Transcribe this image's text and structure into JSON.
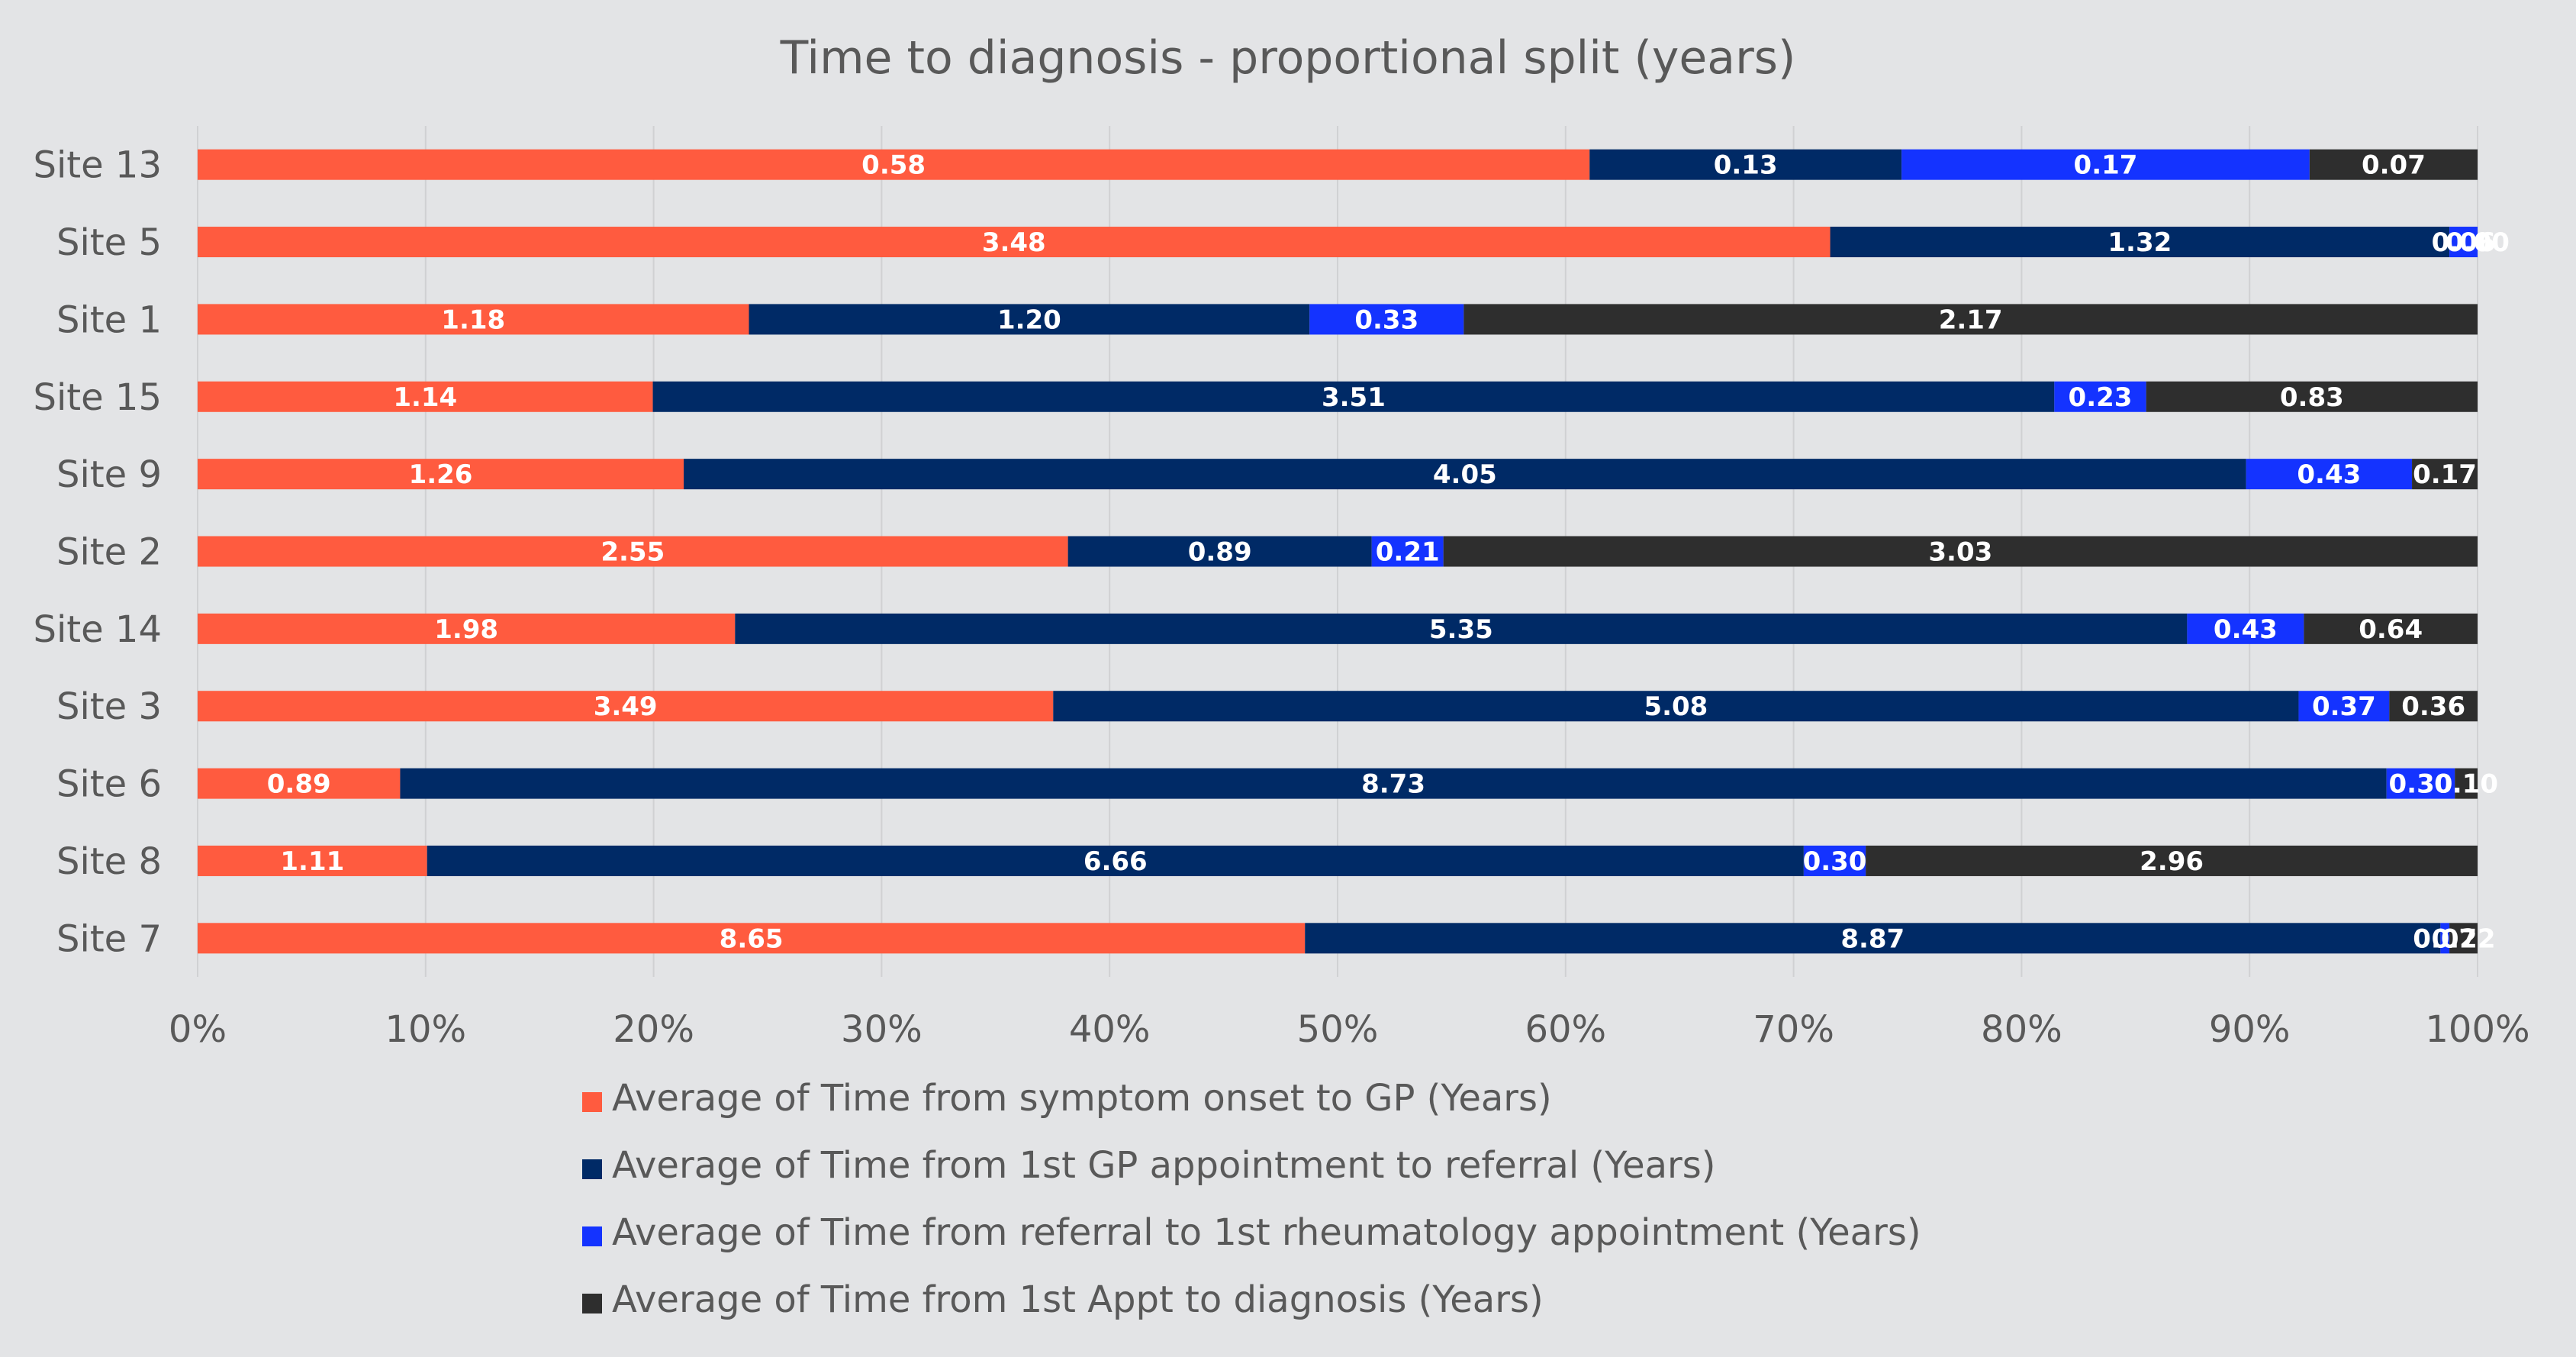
{
  "chart_data": {
    "type": "bar",
    "orientation": "horizontal",
    "stacked": "percent",
    "title": "Time to diagnosis - proportional split (years)",
    "categories": [
      "Site 13",
      "Site 5",
      "Site 1",
      "Site 15",
      "Site 9",
      "Site 2",
      "Site 14",
      "Site 3",
      "Site 6",
      "Site 8",
      "Site 7"
    ],
    "series": [
      {
        "name": "Average of Time from symptom onset to GP (Years)",
        "color": "#FF5B3F",
        "values": [
          0.58,
          3.48,
          1.18,
          1.14,
          1.26,
          2.55,
          1.98,
          3.49,
          0.89,
          1.11,
          8.65
        ]
      },
      {
        "name": "Average of Time from 1st GP appointment to referral (Years)",
        "color": "#002A66",
        "values": [
          0.13,
          1.32,
          1.2,
          3.51,
          4.05,
          0.89,
          5.35,
          5.08,
          8.73,
          6.66,
          8.87
        ]
      },
      {
        "name": "Average of Time from referral to 1st rheumatology appointment (Years)",
        "color": "#1433FF",
        "values": [
          0.17,
          0.06,
          0.33,
          0.23,
          0.43,
          0.21,
          0.43,
          0.37,
          0.3,
          0.3,
          0.07
        ]
      },
      {
        "name": "Average of Time from 1st Appt to diagnosis (Years)",
        "color": "#2E2E2E",
        "values": [
          0.07,
          0.0,
          2.17,
          0.83,
          0.17,
          3.03,
          0.64,
          0.36,
          0.1,
          2.96,
          0.22
        ]
      }
    ],
    "x_ticks": [
      "0%",
      "10%",
      "20%",
      "30%",
      "40%",
      "50%",
      "60%",
      "70%",
      "80%",
      "90%",
      "100%"
    ],
    "xlim": [
      0,
      100
    ],
    "grid": true,
    "legend_position": "bottom",
    "background": "#E3E4E6"
  }
}
